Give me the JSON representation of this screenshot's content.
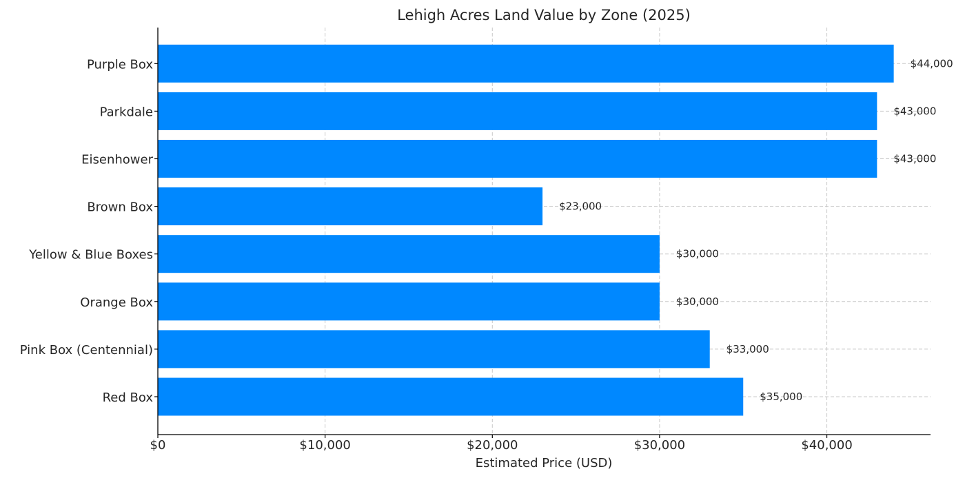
{
  "chart_data": {
    "type": "bar",
    "orientation": "horizontal",
    "title": "Lehigh Acres Land Value by Zone (2025)",
    "xlabel": "Estimated Price (USD)",
    "ylabel": "",
    "categories": [
      "Red Box",
      "Pink Box (Centennial)",
      "Orange Box",
      "Yellow & Blue Boxes",
      "Brown Box",
      "Eisenhower",
      "Parkdale",
      "Purple Box"
    ],
    "values": [
      35000,
      33000,
      30000,
      30000,
      23000,
      43000,
      43000,
      44000
    ],
    "value_labels": [
      "$35,000",
      "$33,000",
      "$30,000",
      "$30,000",
      "$23,000",
      "$43,000",
      "$43,000",
      "$44,000"
    ],
    "xlim": [
      0,
      46200
    ],
    "x_ticks": [
      0,
      10000,
      20000,
      30000,
      40000
    ],
    "x_tick_labels": [
      "$0",
      "$10,000",
      "$20,000",
      "$30,000",
      "$40,000"
    ],
    "grid": true,
    "bar_color": "#0088ff"
  }
}
